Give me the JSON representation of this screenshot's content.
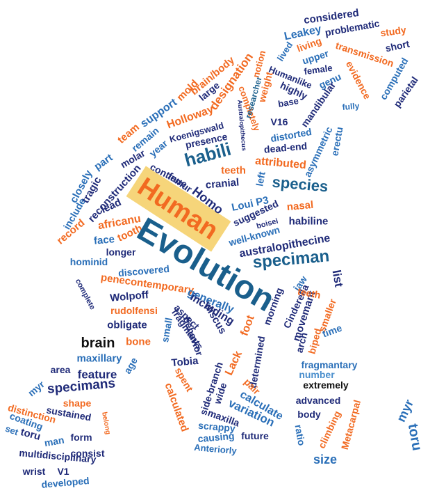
{
  "palette": {
    "navy": "#1f2a78",
    "teal": "#1a5f8c",
    "blue": "#2a6fb8",
    "lightblue": "#4b8fcd",
    "orange": "#f26a21",
    "black": "#111111",
    "highlight": "#f6d57a"
  },
  "words": [
    {
      "text": "Leakey"
    },
    {
      "text": "considered"
    },
    {
      "text": "problematic"
    },
    {
      "text": "living"
    },
    {
      "text": "study"
    },
    {
      "text": "short"
    },
    {
      "text": "lived"
    },
    {
      "text": "upper"
    },
    {
      "text": "transmission"
    },
    {
      "text": "female"
    },
    {
      "text": "brain/body"
    },
    {
      "text": "designation"
    },
    {
      "text": "notion"
    },
    {
      "text": "Humanlike"
    },
    {
      "text": "genu"
    },
    {
      "text": "evidence"
    },
    {
      "text": "computed"
    },
    {
      "text": "parietal"
    },
    {
      "text": "mold"
    },
    {
      "text": "large"
    },
    {
      "text": "weight"
    },
    {
      "text": "highly"
    },
    {
      "text": "base"
    },
    {
      "text": "mandibular"
    },
    {
      "text": "fully"
    },
    {
      "text": "support"
    },
    {
      "text": "completely"
    },
    {
      "text": "researcher"
    },
    {
      "text": "Australopithecus"
    },
    {
      "text": "Holloway"
    },
    {
      "text": "team"
    },
    {
      "text": "Koenigswald"
    },
    {
      "text": "remain"
    },
    {
      "text": "presence"
    },
    {
      "text": "V16"
    },
    {
      "text": "distorted"
    },
    {
      "text": "asymmetric"
    },
    {
      "text": "erectu"
    },
    {
      "text": "year"
    },
    {
      "text": "habili"
    },
    {
      "text": "dead-end"
    },
    {
      "text": "part"
    },
    {
      "text": "molar"
    },
    {
      "text": "closely"
    },
    {
      "text": "tragic"
    },
    {
      "text": "attributed"
    },
    {
      "text": "teeth"
    },
    {
      "text": "reconstruction"
    },
    {
      "text": "continue"
    },
    {
      "text": "femur"
    },
    {
      "text": "cranial"
    },
    {
      "text": "left"
    },
    {
      "text": "species"
    },
    {
      "text": "Human"
    },
    {
      "text": "lead"
    },
    {
      "text": "include"
    },
    {
      "text": "record"
    },
    {
      "text": "Homo"
    },
    {
      "text": "Loui P3"
    },
    {
      "text": "suggested"
    },
    {
      "text": "nasal"
    },
    {
      "text": "africanu"
    },
    {
      "text": "boisei"
    },
    {
      "text": "habiline"
    },
    {
      "text": "face"
    },
    {
      "text": "tooth"
    },
    {
      "text": "Evolution"
    },
    {
      "text": "well-known"
    },
    {
      "text": "longer"
    },
    {
      "text": "australopithecine"
    },
    {
      "text": "speciman"
    },
    {
      "text": "hominid"
    },
    {
      "text": "discovered"
    },
    {
      "text": "list"
    },
    {
      "text": "penecontemporary"
    },
    {
      "text": "complete"
    },
    {
      "text": "jaw"
    },
    {
      "text": "Wolpoff"
    },
    {
      "text": "generally"
    },
    {
      "text": "morning"
    },
    {
      "text": "Cinderella"
    },
    {
      "text": "including"
    },
    {
      "text": "rudolfensi"
    },
    {
      "text": "aspect"
    },
    {
      "text": "discus"
    },
    {
      "text": "movemant"
    },
    {
      "text": "teeth"
    },
    {
      "text": "smaller"
    },
    {
      "text": "obligate"
    },
    {
      "text": "fragmants"
    },
    {
      "text": "time"
    },
    {
      "text": "small"
    },
    {
      "text": "behavior"
    },
    {
      "text": "foot"
    },
    {
      "text": "brain"
    },
    {
      "text": "bone"
    },
    {
      "text": "arch"
    },
    {
      "text": "biped"
    },
    {
      "text": "maxillary"
    },
    {
      "text": "Tobia"
    },
    {
      "text": "Lack"
    },
    {
      "text": "determined"
    },
    {
      "text": "age"
    },
    {
      "text": "fragmantary"
    },
    {
      "text": "area"
    },
    {
      "text": "feature"
    },
    {
      "text": "spent"
    },
    {
      "text": "number"
    },
    {
      "text": "specimans"
    },
    {
      "text": "side-branch"
    },
    {
      "text": "wide"
    },
    {
      "text": "pair"
    },
    {
      "text": "extremely"
    },
    {
      "text": "myr"
    },
    {
      "text": "calculated"
    },
    {
      "text": "calculate"
    },
    {
      "text": "shape"
    },
    {
      "text": "sustained"
    },
    {
      "text": "variation"
    },
    {
      "text": "advanced"
    },
    {
      "text": "distinction"
    },
    {
      "text": "maxilla"
    },
    {
      "text": "myr"
    },
    {
      "text": "coating"
    },
    {
      "text": "belong"
    },
    {
      "text": "body"
    },
    {
      "text": "set"
    },
    {
      "text": "toru"
    },
    {
      "text": "man"
    },
    {
      "text": "form"
    },
    {
      "text": "scrappy"
    },
    {
      "text": "future"
    },
    {
      "text": "Metacarpal"
    },
    {
      "text": "causing"
    },
    {
      "text": "ratio"
    },
    {
      "text": "climbing"
    },
    {
      "text": "toru"
    },
    {
      "text": "multidisciplinary"
    },
    {
      "text": "consist"
    },
    {
      "text": "Anteriorly"
    },
    {
      "text": "wrist"
    },
    {
      "text": "V1"
    },
    {
      "text": "size"
    },
    {
      "text": "developed"
    }
  ]
}
